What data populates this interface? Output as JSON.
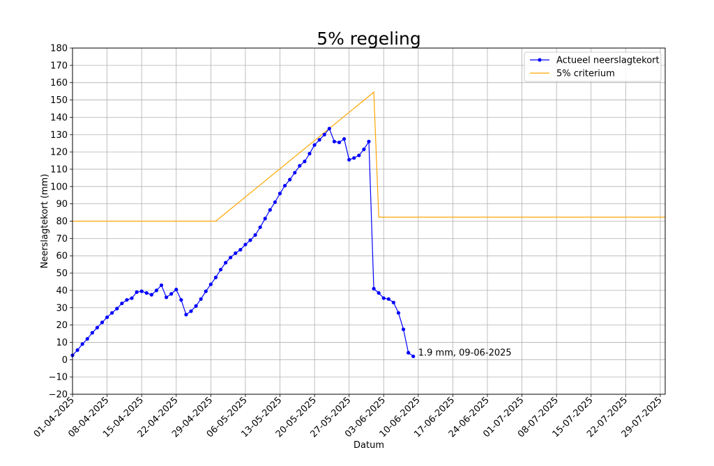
{
  "chart_data": {
    "type": "line",
    "title": "5% regeling",
    "xlabel": "Datum",
    "ylabel": "Neerslagtekort (mm)",
    "ylim": [
      -20,
      180
    ],
    "xlim": [
      "2025-04-01",
      "2025-07-30"
    ],
    "grid": true,
    "legend_position": "top-right",
    "y_ticks": [
      -20,
      -10,
      0,
      10,
      20,
      30,
      40,
      50,
      60,
      70,
      80,
      90,
      100,
      110,
      120,
      130,
      140,
      150,
      160,
      170,
      180
    ],
    "y_tick_labels": [
      "−20",
      "−10",
      "0",
      "10",
      "20",
      "30",
      "40",
      "50",
      "60",
      "70",
      "80",
      "90",
      "100",
      "110",
      "120",
      "130",
      "140",
      "150",
      "160",
      "170",
      "180"
    ],
    "x_ticks": [
      "2025-04-01",
      "2025-04-08",
      "2025-04-15",
      "2025-04-22",
      "2025-04-29",
      "2025-05-06",
      "2025-05-13",
      "2025-05-20",
      "2025-05-27",
      "2025-06-03",
      "2025-06-10",
      "2025-06-17",
      "2025-06-24",
      "2025-07-01",
      "2025-07-08",
      "2025-07-15",
      "2025-07-22",
      "2025-07-29"
    ],
    "x_tick_labels": [
      "01-04-2025",
      "08-04-2025",
      "15-04-2025",
      "22-04-2025",
      "29-04-2025",
      "06-05-2025",
      "13-05-2025",
      "20-05-2025",
      "27-05-2025",
      "03-06-2025",
      "10-06-2025",
      "17-06-2025",
      "24-06-2025",
      "01-07-2025",
      "08-07-2025",
      "15-07-2025",
      "22-07-2025",
      "29-07-2025"
    ],
    "series": [
      {
        "name": "Actueel neerslagtekort",
        "color": "#0000ff",
        "marker": "circle",
        "x": [
          "2025-04-01",
          "2025-04-02",
          "2025-04-03",
          "2025-04-04",
          "2025-04-05",
          "2025-04-06",
          "2025-04-07",
          "2025-04-08",
          "2025-04-09",
          "2025-04-10",
          "2025-04-11",
          "2025-04-12",
          "2025-04-13",
          "2025-04-14",
          "2025-04-15",
          "2025-04-16",
          "2025-04-17",
          "2025-04-18",
          "2025-04-19",
          "2025-04-20",
          "2025-04-21",
          "2025-04-22",
          "2025-04-23",
          "2025-04-24",
          "2025-04-25",
          "2025-04-26",
          "2025-04-27",
          "2025-04-28",
          "2025-04-29",
          "2025-04-30",
          "2025-05-01",
          "2025-05-02",
          "2025-05-03",
          "2025-05-04",
          "2025-05-05",
          "2025-05-06",
          "2025-05-07",
          "2025-05-08",
          "2025-05-09",
          "2025-05-10",
          "2025-05-11",
          "2025-05-12",
          "2025-05-13",
          "2025-05-14",
          "2025-05-15",
          "2025-05-16",
          "2025-05-17",
          "2025-05-18",
          "2025-05-19",
          "2025-05-20",
          "2025-05-21",
          "2025-05-22",
          "2025-05-23",
          "2025-05-24",
          "2025-05-25",
          "2025-05-26",
          "2025-05-27",
          "2025-05-28",
          "2025-05-29",
          "2025-05-30",
          "2025-05-31",
          "2025-06-01",
          "2025-06-02",
          "2025-06-03",
          "2025-06-04",
          "2025-06-05",
          "2025-06-06",
          "2025-06-07",
          "2025-06-08",
          "2025-06-09"
        ],
        "y": [
          2.5,
          5.5,
          9.0,
          12.0,
          15.5,
          18.5,
          21.5,
          24.5,
          27.0,
          29.5,
          32.5,
          34.5,
          35.5,
          39.0,
          39.5,
          38.5,
          37.5,
          40.0,
          43.0,
          36.0,
          38.0,
          40.5,
          34.5,
          26.0,
          28.0,
          31.0,
          35.0,
          39.5,
          43.5,
          47.5,
          52.0,
          56.0,
          59.0,
          61.5,
          63.5,
          66.5,
          69.0,
          72.0,
          76.5,
          81.5,
          86.5,
          91.0,
          96.0,
          100.5,
          104.0,
          108.0,
          112.0,
          114.5,
          119.0,
          124.0,
          127.0,
          130.0,
          133.5,
          126.0,
          125.5,
          127.5,
          115.5,
          116.5,
          118.0,
          121.5,
          126.0,
          41.0,
          38.5,
          35.5,
          35.0,
          33.0,
          27.0,
          17.5,
          4.0,
          1.9
        ]
      },
      {
        "name": "5% criterium",
        "color": "#ffa500",
        "marker": "none",
        "x": [
          "2025-04-01",
          "2025-04-30",
          "2025-06-01",
          "2025-06-02",
          "2025-07-30"
        ],
        "y": [
          80,
          80,
          154.5,
          82.3,
          82.3
        ]
      }
    ],
    "annotations": [
      {
        "text": "1.9 mm, 09-06-2025",
        "x": "2025-06-09",
        "y": 1.9
      }
    ]
  }
}
